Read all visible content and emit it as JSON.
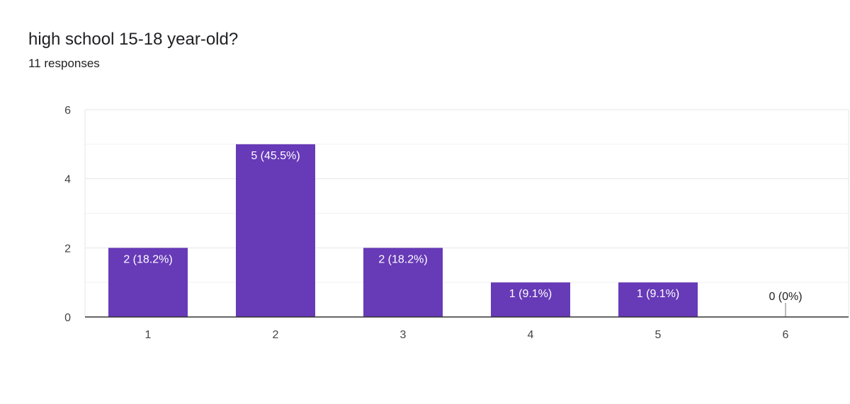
{
  "question": {
    "title": "high school 15-18 year-old?",
    "responses": "11 responses"
  },
  "colors": {
    "bar": "#673ab7",
    "bar_label": "#ffffff",
    "zero_label": "#202124",
    "grid": "#e8e8e8",
    "axis": "#333333"
  },
  "chart_data": {
    "type": "bar",
    "categories": [
      "1",
      "2",
      "3",
      "4",
      "5",
      "6"
    ],
    "values": [
      2,
      5,
      2,
      1,
      1,
      0
    ],
    "data_labels": [
      "2 (18.2%)",
      "5 (45.5%)",
      "2 (18.2%)",
      "1 (9.1%)",
      "1 (9.1%)",
      "0 (0%)"
    ],
    "title": "high school 15-18 year-old?",
    "subtitle": "11 responses",
    "xlabel": "",
    "ylabel": "",
    "ylim": [
      0,
      6
    ],
    "yticks": [
      0,
      2,
      4,
      6
    ],
    "grid": true
  }
}
